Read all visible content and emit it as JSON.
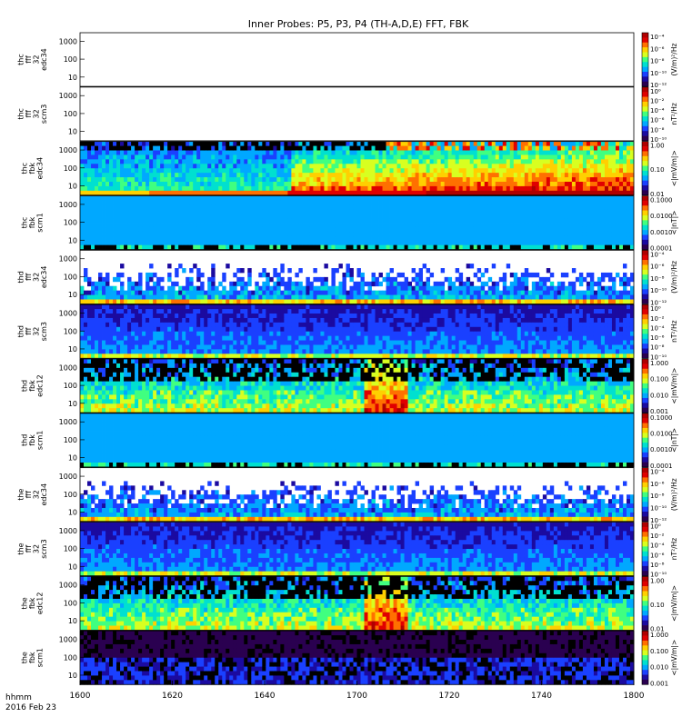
{
  "chart_data": {
    "type": "heatmap",
    "title": "Inner Probes: P5, P3, P4 (TH-A,D,E) FFT, FBK",
    "x_ticks": [
      "1600",
      "1620",
      "1640",
      "1700",
      "1720",
      "1740",
      "1800"
    ],
    "x_label_top": "hhmm",
    "x_label_bottom": "2016 Feb 23",
    "time_range": [
      "16:00",
      "18:00"
    ],
    "y_ticks": [
      "1000",
      "100",
      "10"
    ],
    "y_log_range": [
      3,
      3000
    ],
    "colormap": [
      "#2a0050",
      "#1b0aa0",
      "#1a40ff",
      "#00a8ff",
      "#00e0d0",
      "#40ff80",
      "#d8ff20",
      "#ffd000",
      "#ff7000",
      "#e00000",
      "#b00000"
    ],
    "panels": [
      {
        "label": [
          "thc",
          "fff",
          "32",
          "edc34"
        ],
        "cbar_ticks": [
          "10⁻⁴",
          "10⁻⁶",
          "10⁻⁸",
          "10⁻¹⁰",
          "10⁻¹²"
        ],
        "cbar_label": "(V/m)²/Hz",
        "blank": true
      },
      {
        "label": [
          "thc",
          "fff",
          "32",
          "scm3"
        ],
        "cbar_ticks": [
          "10⁰",
          "10⁻²",
          "10⁻⁴",
          "10⁻⁶",
          "10⁻⁸",
          "10⁻¹⁰"
        ],
        "cbar_label": "nT²/Hz",
        "blank": true
      },
      {
        "label": [
          "thc",
          "fbk",
          "edc34"
        ],
        "cbar_ticks": [
          "1.00",
          "0.10",
          "0.01"
        ],
        "cbar_label": "<|mV/m|>",
        "mode": "fbk_e_active"
      },
      {
        "label": [
          "thc",
          "fbk",
          "scm1"
        ],
        "cbar_ticks": [
          "0.1000",
          "0.0100",
          "0.0010",
          "0.0001"
        ],
        "cbar_label": "<|nT|>",
        "mode": "fbk_b"
      },
      {
        "label": [
          "thd",
          "fff",
          "32",
          "edc34"
        ],
        "cbar_ticks": [
          "10⁻⁴",
          "10⁻⁶",
          "10⁻⁸",
          "10⁻¹⁰",
          "10⁻¹²"
        ],
        "cbar_label": "(V/m)²/Hz",
        "mode": "fff_e"
      },
      {
        "label": [
          "thd",
          "fff",
          "32",
          "scm3"
        ],
        "cbar_ticks": [
          "10⁰",
          "10⁻²",
          "10⁻⁴",
          "10⁻⁶",
          "10⁻⁸",
          "10⁻¹⁰"
        ],
        "cbar_label": "nT²/Hz",
        "mode": "fff_b"
      },
      {
        "label": [
          "thd",
          "fbk",
          "edc12"
        ],
        "cbar_ticks": [
          "1.000",
          "0.100",
          "0.010",
          "0.001"
        ],
        "cbar_label": "<|mV/m|>",
        "mode": "fbk_e_mid"
      },
      {
        "label": [
          "thd",
          "fbk",
          "scm1"
        ],
        "cbar_ticks": [
          "0.1000",
          "0.0100",
          "0.0010",
          "0.0001"
        ],
        "cbar_label": "<|nT|>",
        "mode": "fbk_b"
      },
      {
        "label": [
          "the",
          "fff",
          "32",
          "edc34"
        ],
        "cbar_ticks": [
          "10⁻⁴",
          "10⁻⁶",
          "10⁻⁸",
          "10⁻¹⁰",
          "10⁻¹²"
        ],
        "cbar_label": "(V/m)²/Hz",
        "mode": "fff_e"
      },
      {
        "label": [
          "the",
          "fff",
          "32",
          "scm3"
        ],
        "cbar_ticks": [
          "10⁰",
          "10⁻²",
          "10⁻⁴",
          "10⁻⁶",
          "10⁻⁸",
          "10⁻¹⁰"
        ],
        "cbar_label": "nT²/Hz",
        "mode": "fff_b"
      },
      {
        "label": [
          "the",
          "fbk",
          "edc12"
        ],
        "cbar_ticks": [
          "1.00",
          "0.10",
          "0.01"
        ],
        "cbar_label": "<|mV/m|>",
        "mode": "fbk_e_mid"
      },
      {
        "label": [
          "the",
          "fbk",
          "scm1"
        ],
        "cbar_ticks": [
          "1.000",
          "0.100",
          "0.010",
          "0.001"
        ],
        "cbar_label": "<|mV/m|>",
        "mode": "fbk_dark"
      }
    ]
  }
}
